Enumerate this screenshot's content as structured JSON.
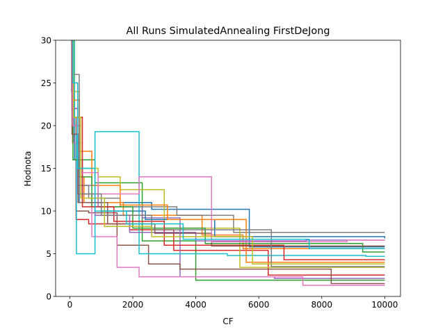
{
  "chart_data": {
    "type": "line",
    "title": "All Runs SimulatedAnnealing FirstDeJong",
    "xlabel": "CF",
    "ylabel": "Hodnota",
    "xlim": [
      -450,
      10500
    ],
    "ylim": [
      0,
      30
    ],
    "xticks": [
      0,
      2000,
      4000,
      6000,
      8000,
      10000
    ],
    "xtick_labels": [
      "0",
      "2000",
      "4000",
      "6000",
      "8000",
      "10000"
    ],
    "yticks": [
      0,
      5,
      10,
      15,
      20,
      25,
      30
    ],
    "ytick_labels": [
      "0",
      "5",
      "10",
      "15",
      "20",
      "25",
      "30"
    ],
    "grid": false,
    "legend": "none",
    "palette": [
      "#1f77b4",
      "#ff7f0e",
      "#2ca02c",
      "#d62728",
      "#9467bd",
      "#8c564b",
      "#e377c2",
      "#7f7f7f",
      "#bcbd22",
      "#17becf"
    ],
    "series": [
      {
        "color": "#1f77b4",
        "x": [
          0,
          60,
          150,
          400,
          2600,
          5700,
          10000
        ],
        "y": [
          31,
          24,
          16,
          11,
          10.2,
          5.8,
          5.8
        ]
      },
      {
        "color": "#ff7f0e",
        "x": [
          0,
          100,
          250,
          450,
          1700,
          4200,
          5500,
          10000
        ],
        "y": [
          31,
          25,
          14,
          11,
          9.5,
          7.2,
          5.6,
          5.6
        ]
      },
      {
        "color": "#2ca02c",
        "x": [
          0,
          80,
          300,
          800,
          2300,
          4000,
          10000
        ],
        "y": [
          31,
          20,
          16,
          13.3,
          6.5,
          1.9,
          1.9
        ]
      },
      {
        "color": "#d62728",
        "x": [
          0,
          90,
          200,
          600,
          1900,
          3300,
          6300,
          10000
        ],
        "y": [
          31,
          18,
          9,
          8.5,
          7.8,
          5.4,
          2.5,
          2.5
        ]
      },
      {
        "color": "#9467bd",
        "x": [
          0,
          70,
          250,
          900,
          2300,
          3500,
          6500,
          10000
        ],
        "y": [
          31,
          22,
          13,
          10.5,
          9.2,
          2.3,
          2.1,
          2.1
        ]
      },
      {
        "color": "#8c564b",
        "x": [
          0,
          110,
          200,
          600,
          1500,
          2500,
          3500,
          8300,
          10000
        ],
        "y": [
          31,
          21,
          10,
          9.8,
          6.0,
          3.8,
          3.2,
          1.5,
          1.5
        ]
      },
      {
        "color": "#e377c2",
        "x": [
          0,
          120,
          350,
          700,
          1500,
          2200,
          7400,
          10000
        ],
        "y": [
          31,
          18,
          12,
          7.0,
          3.4,
          2.3,
          1.3,
          1.3
        ]
      },
      {
        "color": "#7f7f7f",
        "x": [
          0,
          80,
          250,
          600,
          1600,
          3400,
          5200,
          10000
        ],
        "y": [
          31,
          22,
          13,
          11.5,
          10.5,
          9.5,
          7.5,
          7.5
        ]
      },
      {
        "color": "#bcbd22",
        "x": [
          0,
          130,
          300,
          900,
          1600,
          3000,
          5400,
          10000
        ],
        "y": [
          31,
          24,
          15,
          14.0,
          12.5,
          8.0,
          3.4,
          3.4
        ]
      },
      {
        "color": "#17becf",
        "x": [
          0,
          150,
          210,
          800,
          2200,
          5000,
          9400,
          10000
        ],
        "y": [
          31,
          19,
          5.0,
          19.3,
          5.0,
          4.8,
          4.7,
          4.7
        ]
      },
      {
        "color": "#1f77b4",
        "x": [
          0,
          90,
          300,
          1000,
          2400,
          4600,
          10000
        ],
        "y": [
          31,
          20,
          11,
          10.0,
          9.0,
          7.0,
          6.8
        ]
      },
      {
        "color": "#ff7f0e",
        "x": [
          0,
          70,
          300,
          700,
          1600,
          3100,
          5600,
          10000
        ],
        "y": [
          31,
          23,
          17,
          13.0,
          10.7,
          9.0,
          4.0,
          4.0
        ]
      },
      {
        "color": "#2ca02c",
        "x": [
          0,
          100,
          300,
          700,
          2000,
          4300,
          9300,
          10000
        ],
        "y": [
          31,
          16,
          14,
          10.5,
          8.0,
          6.2,
          5.2,
          5.2
        ]
      },
      {
        "color": "#d62728",
        "x": [
          0,
          110,
          400,
          1400,
          3000,
          6800,
          10000
        ],
        "y": [
          31,
          21,
          10.5,
          8.8,
          6.0,
          4.3,
          4.3
        ]
      },
      {
        "color": "#9467bd",
        "x": [
          0,
          80,
          250,
          800,
          1900,
          4000,
          7500,
          10000
        ],
        "y": [
          31,
          22,
          12,
          9.5,
          7.5,
          6.5,
          6.6,
          6.6
        ]
      },
      {
        "color": "#8c564b",
        "x": [
          0,
          70,
          260,
          1200,
          2700,
          4500,
          10000
        ],
        "y": [
          31,
          19,
          11,
          8.5,
          7.4,
          5.9,
          5.9
        ]
      },
      {
        "color": "#e377c2",
        "x": [
          0,
          90,
          350,
          900,
          2200,
          4500,
          8800,
          10000
        ],
        "y": [
          31,
          20,
          14.5,
          12.0,
          14.0,
          6.4,
          6.6,
          6.6
        ]
      },
      {
        "color": "#7f7f7f",
        "x": [
          0,
          110,
          300,
          1000,
          2600,
          6400,
          10000
        ],
        "y": [
          31,
          26,
          12,
          9.5,
          7.8,
          3.5,
          3.5
        ]
      },
      {
        "color": "#bcbd22",
        "x": [
          0,
          120,
          350,
          1100,
          2600,
          5800,
          10000
        ],
        "y": [
          31,
          21,
          11.5,
          8.2,
          7.0,
          3.8,
          3.8
        ]
      },
      {
        "color": "#17becf",
        "x": [
          0,
          100,
          250,
          800,
          1800,
          3600,
          7600,
          10000
        ],
        "y": [
          31,
          25,
          15,
          10.0,
          8.5,
          6.7,
          5.6,
          5.6
        ]
      }
    ]
  }
}
